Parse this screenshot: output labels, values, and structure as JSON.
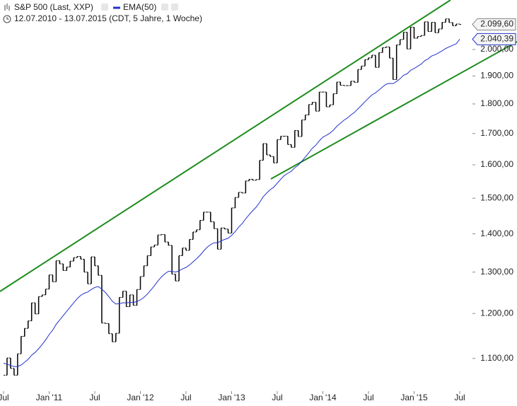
{
  "chart_data": {
    "type": "ohlc-line",
    "subtitle": "12.07.2010 - 13.07.2015 (CDT, 5 Jahre, 1 Woche)",
    "categories": [
      "Jul",
      null,
      null,
      null,
      null,
      null,
      null,
      null,
      null,
      null,
      null,
      null,
      null,
      "Jan '11",
      null,
      null,
      null,
      null,
      null,
      null,
      null,
      null,
      null,
      null,
      null,
      null,
      "Jul",
      null,
      null,
      null,
      null,
      null,
      null,
      null,
      null,
      null,
      null,
      null,
      null,
      "Jan '12",
      null,
      null,
      null,
      null,
      null,
      null,
      null,
      null,
      null,
      null,
      null,
      null,
      "Jul",
      null,
      null,
      null,
      null,
      null,
      null,
      null,
      null,
      null,
      null,
      null,
      null,
      "Jan '13",
      null,
      null,
      null,
      null,
      null,
      null,
      null,
      null,
      null,
      null,
      null,
      null,
      "Jul",
      null,
      null,
      null,
      null,
      null,
      null,
      null,
      null,
      null,
      null,
      null,
      null,
      "Jan '14",
      null,
      null,
      null,
      null,
      null,
      null,
      null,
      null,
      null,
      null,
      null,
      null,
      "Jul",
      null,
      null,
      null,
      null,
      null,
      null,
      null,
      null,
      null,
      null,
      null,
      null,
      "Jan '15",
      null,
      null,
      null,
      null,
      null,
      null,
      null,
      null,
      null,
      null,
      null,
      null,
      "Jul"
    ],
    "series": [
      {
        "name": "S&P 500 (Last, XXP)",
        "color": "#000000",
        "last_label": "2.099,60",
        "values": [
          1065,
          1101,
          1079,
          1065,
          1110,
          1148,
          1166,
          1183,
          1225,
          1199,
          1240,
          1244,
          1258,
          1293,
          1276,
          1329,
          1321,
          1304,
          1313,
          1328,
          1337,
          1340,
          1333,
          1300,
          1271,
          1339,
          1316,
          1292,
          1178,
          1177,
          1154,
          1136,
          1155,
          1238,
          1253,
          1216,
          1244,
          1219,
          1257,
          1289,
          1316,
          1342,
          1365,
          1370,
          1397,
          1398,
          1378,
          1369,
          1295,
          1278,
          1342,
          1362,
          1356,
          1385,
          1405,
          1411,
          1437,
          1460,
          1460,
          1433,
          1414,
          1359,
          1416,
          1413,
          1402,
          1472,
          1502,
          1517,
          1515,
          1551,
          1556,
          1553,
          1555,
          1614,
          1667,
          1631,
          1626,
          1606,
          1680,
          1691,
          1691,
          1664,
          1655,
          1710,
          1690,
          1745,
          1762,
          1798,
          1806,
          1775,
          1842,
          1842,
          1790,
          1797,
          1836,
          1878,
          1866,
          1865,
          1865,
          1881,
          1877,
          1924,
          1937,
          1961,
          1968,
          1978,
          1932,
          1988,
          2007,
          2010,
          1967,
          1887,
          2018,
          2039,
          2068,
          2002,
          2088,
          2044,
          2051,
          2055,
          2110,
          2071,
          2108,
          2066,
          2081,
          2108,
          2122,
          2107,
          2094,
          2101,
          2099.6
        ]
      },
      {
        "name": "EMA(50)",
        "color": "#2233cc",
        "last_label": "2.040,39",
        "values": [
          1090,
          1088,
          1085,
          1083,
          1083,
          1086,
          1092,
          1098,
          1107,
          1113,
          1121,
          1130,
          1140,
          1152,
          1162,
          1175,
          1185,
          1195,
          1205,
          1215,
          1225,
          1235,
          1243,
          1248,
          1251,
          1257,
          1262,
          1264,
          1258,
          1250,
          1240,
          1229,
          1222,
          1223,
          1225,
          1225,
          1226,
          1226,
          1228,
          1232,
          1238,
          1246,
          1256,
          1266,
          1278,
          1288,
          1296,
          1302,
          1302,
          1300,
          1303,
          1308,
          1312,
          1318,
          1326,
          1334,
          1343,
          1354,
          1364,
          1371,
          1376,
          1376,
          1381,
          1385,
          1388,
          1396,
          1406,
          1418,
          1428,
          1441,
          1453,
          1464,
          1474,
          1488,
          1504,
          1515,
          1525,
          1532,
          1544,
          1556,
          1567,
          1574,
          1580,
          1591,
          1599,
          1611,
          1624,
          1638,
          1652,
          1662,
          1676,
          1688,
          1694,
          1701,
          1711,
          1724,
          1734,
          1744,
          1752,
          1762,
          1771,
          1783,
          1795,
          1808,
          1820,
          1832,
          1839,
          1849,
          1860,
          1870,
          1873,
          1872,
          1880,
          1890,
          1903,
          1908,
          1921,
          1928,
          1936,
          1944,
          1957,
          1964,
          1975,
          1980,
          1987,
          1995,
          2004,
          2010,
          2016,
          2022,
          2040.39
        ]
      }
    ],
    "log_scale": true,
    "ylim": [
      1034,
      2201
    ],
    "yticks": [
      {
        "value": 1100,
        "label": "1.100,00"
      },
      {
        "value": 1200,
        "label": "1.200,00"
      },
      {
        "value": 1300,
        "label": "1.300,00"
      },
      {
        "value": 1400,
        "label": "1.400,00"
      },
      {
        "value": 1500,
        "label": "1.500,00"
      },
      {
        "value": 1600,
        "label": "1.600,00"
      },
      {
        "value": 1700,
        "label": "1.700,00"
      },
      {
        "value": 1800,
        "label": "1.800,00"
      },
      {
        "value": 1900,
        "label": "1.900,00"
      },
      {
        "value": 2000,
        "label": "2.000,00"
      }
    ]
  }
}
